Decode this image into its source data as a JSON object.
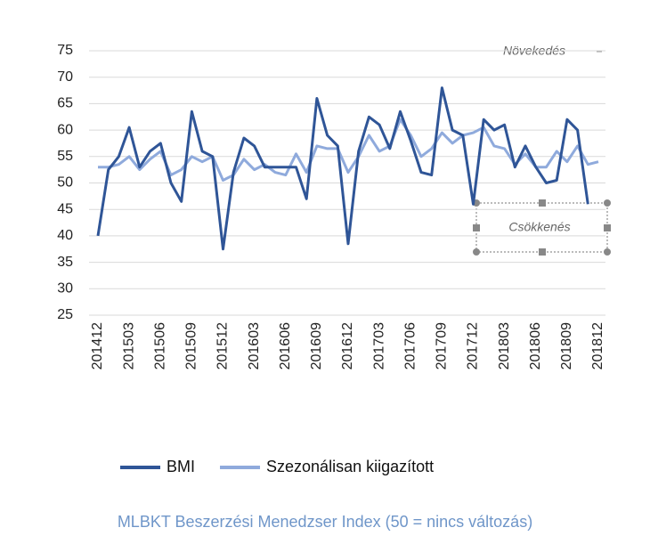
{
  "chart_data": {
    "type": "line",
    "title": "MLBKT Beszerzési Menedzser Index (50 = nincs változás)",
    "annotations": [
      "Növekedés",
      "Csökkenés"
    ],
    "categories": [
      "201412",
      null,
      null,
      "201503",
      null,
      null,
      "201506",
      null,
      null,
      "201509",
      null,
      null,
      "201512",
      null,
      null,
      "201603",
      null,
      null,
      "201606",
      null,
      null,
      "201609",
      null,
      null,
      "201612",
      null,
      null,
      "201703",
      null,
      null,
      "201706",
      null,
      null,
      "201709",
      null,
      null,
      "201712",
      null,
      null,
      "201803",
      null,
      null,
      "201806",
      null,
      null,
      "201809",
      null,
      null,
      "201812"
    ],
    "series": [
      {
        "name": "BMI",
        "color": "#2f5597",
        "values": [
          40,
          52.5,
          55,
          60.5,
          53,
          56,
          57.5,
          50,
          46.5,
          63.5,
          56,
          55,
          37.5,
          52,
          58.5,
          57,
          53,
          53,
          53,
          53,
          47,
          66,
          59,
          57,
          38.5,
          56,
          62.5,
          61,
          56.5,
          63.5,
          58,
          52,
          51.5,
          68,
          60,
          59,
          46,
          62,
          60,
          61,
          53,
          57,
          53,
          50,
          50.5,
          62,
          60,
          46,
          null
        ]
      },
      {
        "name": "Szezonálisan kiigazított",
        "color": "#8faadc",
        "values": [
          53,
          53,
          53.5,
          55,
          52.5,
          54.5,
          56,
          51.5,
          52.5,
          55,
          54,
          55,
          50.5,
          51.5,
          54.5,
          52.5,
          53.5,
          52,
          51.5,
          55.5,
          52,
          57,
          56.5,
          56.5,
          52,
          55,
          59,
          56,
          57,
          62,
          59,
          55,
          56.5,
          59.5,
          57.5,
          59,
          59.5,
          60.5,
          57,
          56.5,
          53.5,
          55.5,
          53,
          53,
          56,
          54,
          57,
          53.5,
          54
        ]
      }
    ],
    "ylim": [
      25,
      75
    ],
    "yticks": [
      25,
      30,
      35,
      40,
      45,
      50,
      55,
      60,
      65,
      70,
      75
    ],
    "grid": true,
    "legend": "bottom"
  }
}
